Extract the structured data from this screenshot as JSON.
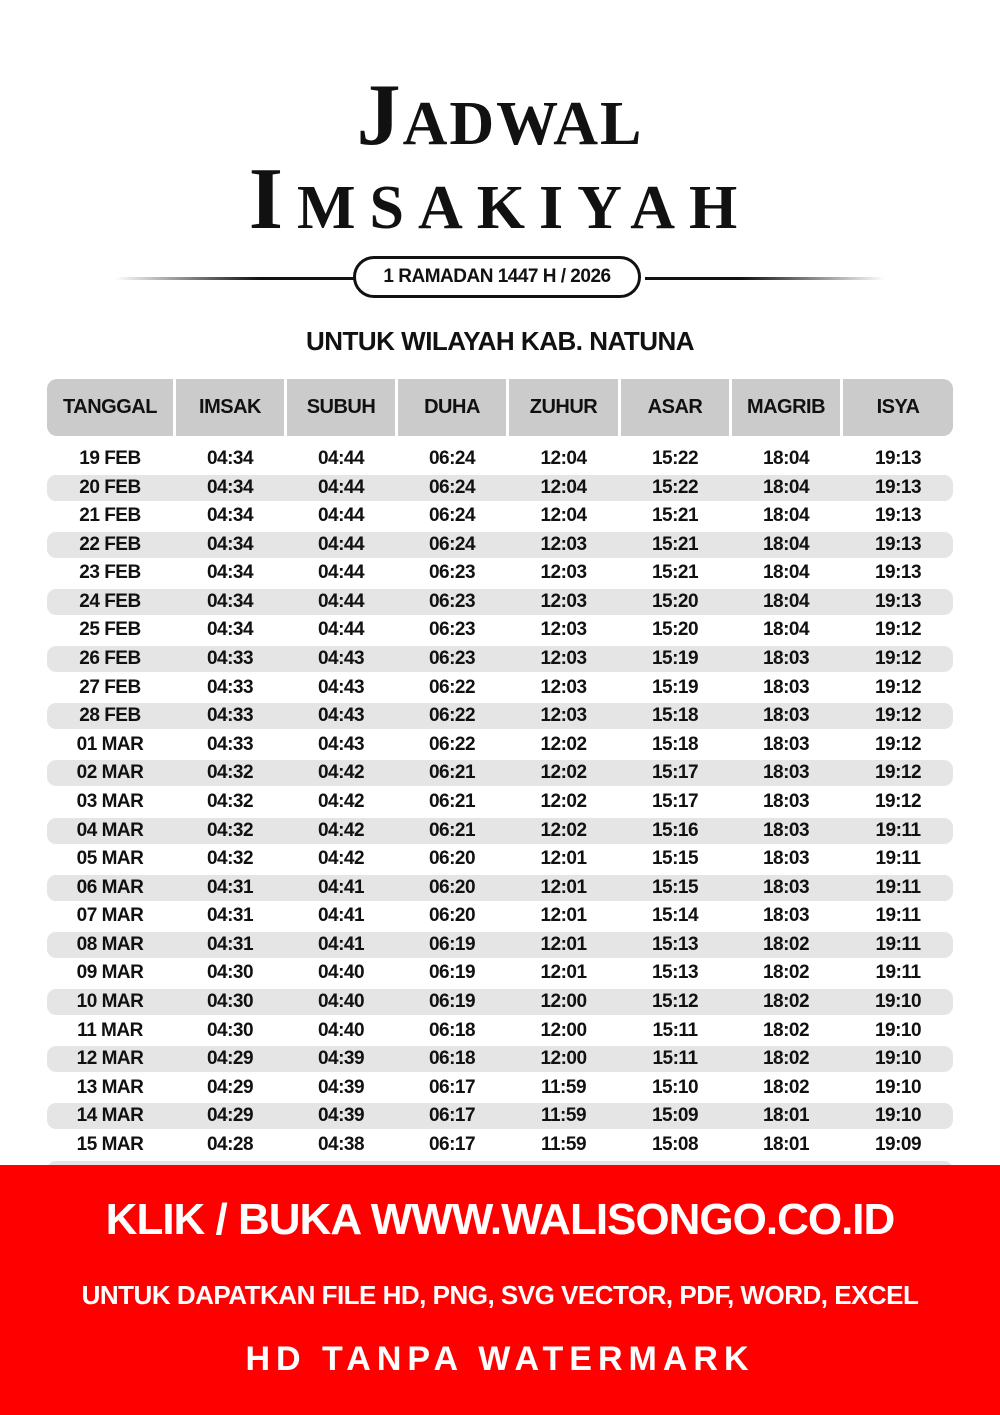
{
  "title": {
    "line1_initial": "J",
    "line1_rest": "ADWAL",
    "line2_initial": "I",
    "line2_rest": "MSAKIYAH"
  },
  "subtitle": "1 RAMADAN 1447 H / 2026",
  "region": "UNTUK WILAYAH KAB. NATUNA",
  "table": {
    "columns": [
      "TANGGAL",
      "IMSAK",
      "SUBUH",
      "DUHA",
      "ZUHUR",
      "ASAR",
      "MAGRIB",
      "ISYA"
    ],
    "rows": [
      [
        "19 FEB",
        "04:34",
        "04:44",
        "06:24",
        "12:04",
        "15:22",
        "18:04",
        "19:13"
      ],
      [
        "20 FEB",
        "04:34",
        "04:44",
        "06:24",
        "12:04",
        "15:22",
        "18:04",
        "19:13"
      ],
      [
        "21 FEB",
        "04:34",
        "04:44",
        "06:24",
        "12:04",
        "15:21",
        "18:04",
        "19:13"
      ],
      [
        "22 FEB",
        "04:34",
        "04:44",
        "06:24",
        "12:03",
        "15:21",
        "18:04",
        "19:13"
      ],
      [
        "23 FEB",
        "04:34",
        "04:44",
        "06:23",
        "12:03",
        "15:21",
        "18:04",
        "19:13"
      ],
      [
        "24 FEB",
        "04:34",
        "04:44",
        "06:23",
        "12:03",
        "15:20",
        "18:04",
        "19:13"
      ],
      [
        "25 FEB",
        "04:34",
        "04:44",
        "06:23",
        "12:03",
        "15:20",
        "18:04",
        "19:12"
      ],
      [
        "26 FEB",
        "04:33",
        "04:43",
        "06:23",
        "12:03",
        "15:19",
        "18:03",
        "19:12"
      ],
      [
        "27 FEB",
        "04:33",
        "04:43",
        "06:22",
        "12:03",
        "15:19",
        "18:03",
        "19:12"
      ],
      [
        "28 FEB",
        "04:33",
        "04:43",
        "06:22",
        "12:03",
        "15:18",
        "18:03",
        "19:12"
      ],
      [
        "01 MAR",
        "04:33",
        "04:43",
        "06:22",
        "12:02",
        "15:18",
        "18:03",
        "19:12"
      ],
      [
        "02 MAR",
        "04:32",
        "04:42",
        "06:21",
        "12:02",
        "15:17",
        "18:03",
        "19:12"
      ],
      [
        "03 MAR",
        "04:32",
        "04:42",
        "06:21",
        "12:02",
        "15:17",
        "18:03",
        "19:12"
      ],
      [
        "04 MAR",
        "04:32",
        "04:42",
        "06:21",
        "12:02",
        "15:16",
        "18:03",
        "19:11"
      ],
      [
        "05 MAR",
        "04:32",
        "04:42",
        "06:20",
        "12:01",
        "15:15",
        "18:03",
        "19:11"
      ],
      [
        "06 MAR",
        "04:31",
        "04:41",
        "06:20",
        "12:01",
        "15:15",
        "18:03",
        "19:11"
      ],
      [
        "07 MAR",
        "04:31",
        "04:41",
        "06:20",
        "12:01",
        "15:14",
        "18:03",
        "19:11"
      ],
      [
        "08 MAR",
        "04:31",
        "04:41",
        "06:19",
        "12:01",
        "15:13",
        "18:02",
        "19:11"
      ],
      [
        "09 MAR",
        "04:30",
        "04:40",
        "06:19",
        "12:01",
        "15:13",
        "18:02",
        "19:11"
      ],
      [
        "10 MAR",
        "04:30",
        "04:40",
        "06:19",
        "12:00",
        "15:12",
        "18:02",
        "19:10"
      ],
      [
        "11 MAR",
        "04:30",
        "04:40",
        "06:18",
        "12:00",
        "15:11",
        "18:02",
        "19:10"
      ],
      [
        "12 MAR",
        "04:29",
        "04:39",
        "06:18",
        "12:00",
        "15:11",
        "18:02",
        "19:10"
      ],
      [
        "13 MAR",
        "04:29",
        "04:39",
        "06:17",
        "11:59",
        "15:10",
        "18:02",
        "19:10"
      ],
      [
        "14 MAR",
        "04:29",
        "04:39",
        "06:17",
        "11:59",
        "15:09",
        "18:01",
        "19:10"
      ],
      [
        "15 MAR",
        "04:28",
        "04:38",
        "06:17",
        "11:59",
        "15:08",
        "18:01",
        "19:09"
      ]
    ]
  },
  "banner": {
    "line1": "KLIK / BUKA WWW.WALISONGO.CO.ID",
    "line2": "UNTUK DAPATKAN FILE HD, PNG, SVG VECTOR, PDF, WORD, EXCEL",
    "line3": "HD TANPA WATERMARK",
    "color": "#ff0000"
  }
}
